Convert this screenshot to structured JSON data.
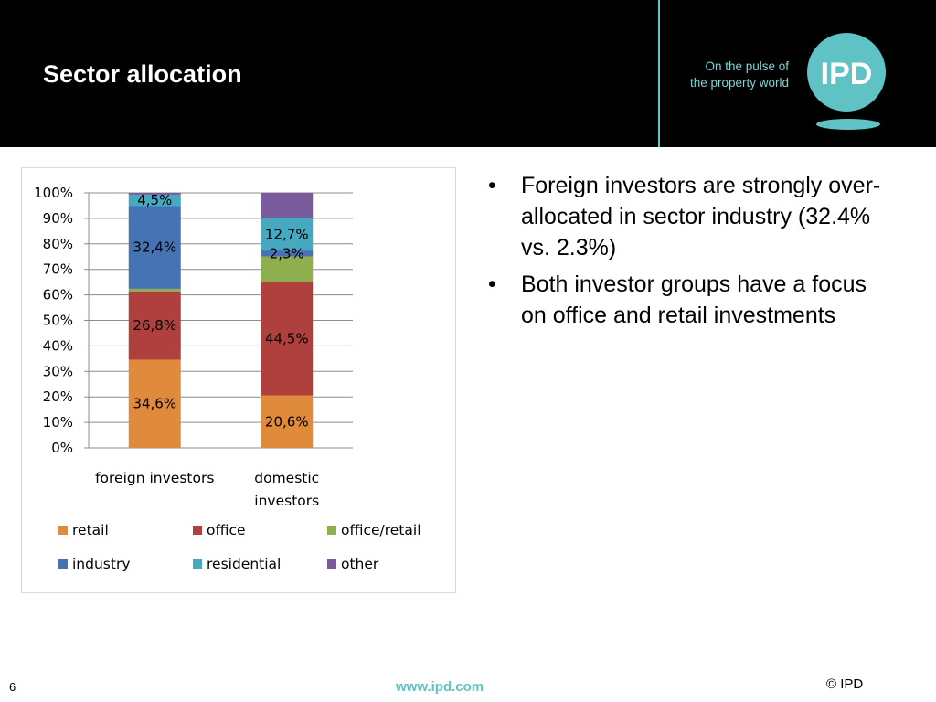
{
  "header": {
    "title": "Sector allocation",
    "tagline_line1": "On the pulse of",
    "tagline_line2": "the property world",
    "logo_text": "IPD"
  },
  "colors": {
    "header_bg": "#000000",
    "accent": "#5fc3c6",
    "retail": "#e08a3c",
    "office": "#b0403d",
    "office_retail": "#8fae4e",
    "industry": "#4573b4",
    "residential": "#46a9c0",
    "other": "#7a5c9c"
  },
  "chart_data": {
    "type": "bar",
    "stacked": true,
    "percent": true,
    "categories": [
      [
        "foreign investors"
      ],
      [
        "domestic",
        "investors"
      ]
    ],
    "y_ticks": [
      "0%",
      "10%",
      "20%",
      "30%",
      "40%",
      "50%",
      "60%",
      "70%",
      "80%",
      "90%",
      "100%"
    ],
    "ylim": [
      0,
      100
    ],
    "grid": true,
    "legend_position": "bottom",
    "series": [
      {
        "name": "retail",
        "color": "#e08a3c",
        "values": [
          34.6,
          20.6
        ],
        "labels": [
          "34,6%",
          "20,6%"
        ]
      },
      {
        "name": "office",
        "color": "#b0403d",
        "values": [
          26.8,
          44.5
        ],
        "labels": [
          "26,8%",
          "44,5%"
        ]
      },
      {
        "name": "office/retail",
        "color": "#8fae4e",
        "values": [
          1.0,
          10.0
        ],
        "labels": [
          "",
          ""
        ]
      },
      {
        "name": "industry",
        "color": "#4573b4",
        "values": [
          32.4,
          2.3
        ],
        "labels": [
          "32,4%",
          "2,3%"
        ]
      },
      {
        "name": "residential",
        "color": "#46a9c0",
        "values": [
          4.5,
          12.7
        ],
        "labels": [
          "4,5%",
          "12,7%"
        ]
      },
      {
        "name": "other",
        "color": "#7a5c9c",
        "values": [
          0.7,
          9.9
        ],
        "labels": [
          "",
          ""
        ]
      }
    ]
  },
  "bullets": [
    "Foreign investors are strongly over-allocated in sector industry (32.4% vs. 2.3%)",
    "Both investor groups have a focus on office and retail investments"
  ],
  "bullet_symbol": "•",
  "footer": {
    "page_number": "6",
    "url": "www.ipd.com",
    "copyright": "© IPD"
  }
}
